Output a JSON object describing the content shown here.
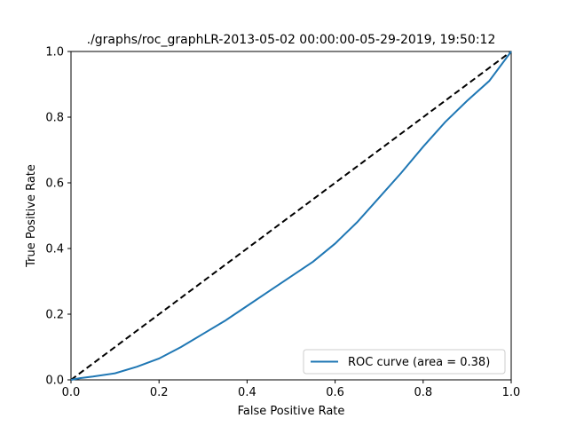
{
  "chart_data": {
    "type": "line",
    "title": "./graphs/roc_graphLR-2013-05-02 00:00:00-05-29-2019, 19:50:12",
    "xlabel": "False Positive Rate",
    "ylabel": "True Positive Rate",
    "xlim": [
      0.0,
      1.0
    ],
    "ylim": [
      0.0,
      1.0
    ],
    "x_ticks": [
      "0.0",
      "0.2",
      "0.4",
      "0.6",
      "0.8",
      "1.0"
    ],
    "y_ticks": [
      "0.0",
      "0.2",
      "0.4",
      "0.6",
      "0.8",
      "1.0"
    ],
    "grid": false,
    "legend": {
      "placement": "lower-right",
      "entries": [
        "ROC curve (area = 0.38)"
      ]
    },
    "series": [
      {
        "name": "ROC curve (area = 0.38)",
        "color": "#1f77b4",
        "style": "solid",
        "x": [
          0.0,
          0.02,
          0.05,
          0.1,
          0.15,
          0.2,
          0.25,
          0.3,
          0.35,
          0.4,
          0.45,
          0.5,
          0.55,
          0.6,
          0.65,
          0.7,
          0.75,
          0.8,
          0.85,
          0.9,
          0.95,
          1.0
        ],
        "y": [
          0.0,
          0.005,
          0.01,
          0.02,
          0.04,
          0.065,
          0.1,
          0.14,
          0.18,
          0.225,
          0.27,
          0.315,
          0.36,
          0.415,
          0.48,
          0.555,
          0.63,
          0.71,
          0.785,
          0.85,
          0.91,
          1.0
        ]
      },
      {
        "name": "",
        "color": "#000000",
        "style": "dashed",
        "x": [
          0.0,
          1.0
        ],
        "y": [
          0.0,
          1.0
        ]
      }
    ]
  }
}
